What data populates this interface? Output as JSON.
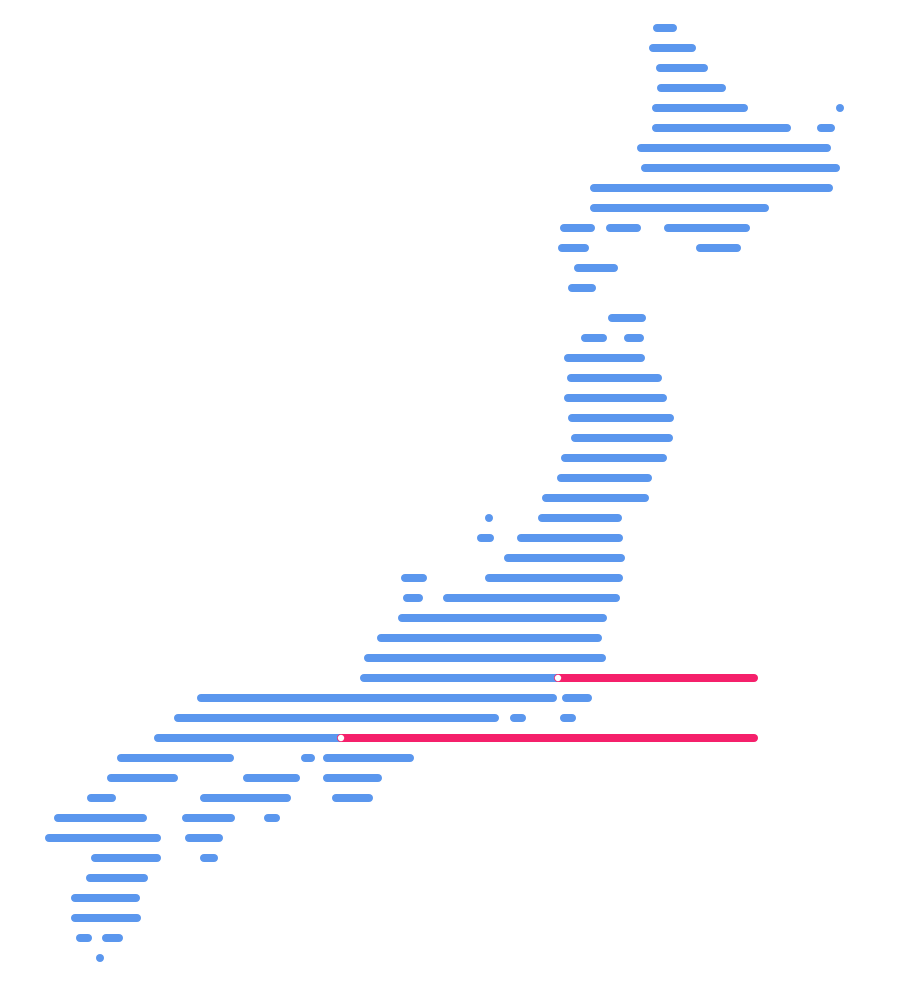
{
  "map": {
    "subject": "japan-dashed-line-map",
    "colors": {
      "land_segments": "#5B97EE",
      "highlight_segments": "#F5206B",
      "highlight_marker": "#FFFFFF",
      "background": "#FFFFFF"
    }
  }
}
